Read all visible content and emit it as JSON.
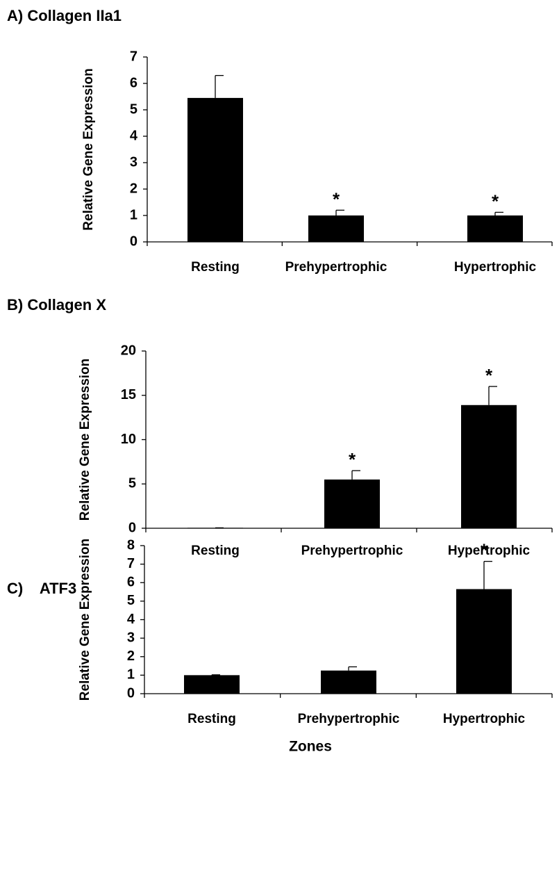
{
  "chart_data": [
    {
      "type": "bar",
      "title": "A) Collagen IIa1",
      "ylabel": "Relative Gene Expression",
      "categories": [
        "Resting",
        "Prehypertrophic",
        "Hypertrophic"
      ],
      "values": [
        5.45,
        1.0,
        1.0
      ],
      "errors": [
        0.85,
        0.2,
        0.12
      ],
      "significance": [
        null,
        "*",
        "*"
      ],
      "color": "#000000",
      "ylim": [
        0,
        7
      ],
      "yticks": [
        0,
        1,
        2,
        3,
        4,
        5,
        6,
        7
      ]
    },
    {
      "type": "bar",
      "title": "B) Collagen X",
      "ylabel": "Relative Gene Expression",
      "categories": [
        "Resting",
        "Prehypertrophic",
        "Hypertrophic"
      ],
      "values": [
        0.05,
        5.5,
        13.9
      ],
      "errors": [
        0,
        1.0,
        2.1
      ],
      "significance": [
        null,
        "*",
        "*"
      ],
      "color": "#000000",
      "ylim": [
        0,
        20
      ],
      "yticks": [
        0,
        5,
        10,
        15,
        20
      ]
    },
    {
      "type": "bar",
      "title": "C)    ATF3",
      "ylabel": "Relative Gene Expression",
      "xlabel": "Zones",
      "categories": [
        "Resting",
        "Prehypertrophic",
        "Hypertrophic"
      ],
      "values": [
        1.0,
        1.25,
        5.65
      ],
      "errors": [
        0.02,
        0.2,
        1.5
      ],
      "significance": [
        null,
        null,
        "*"
      ],
      "color": "#000000",
      "ylim": [
        0,
        8
      ],
      "yticks": [
        0,
        1,
        2,
        3,
        4,
        5,
        6,
        7,
        8
      ]
    }
  ]
}
